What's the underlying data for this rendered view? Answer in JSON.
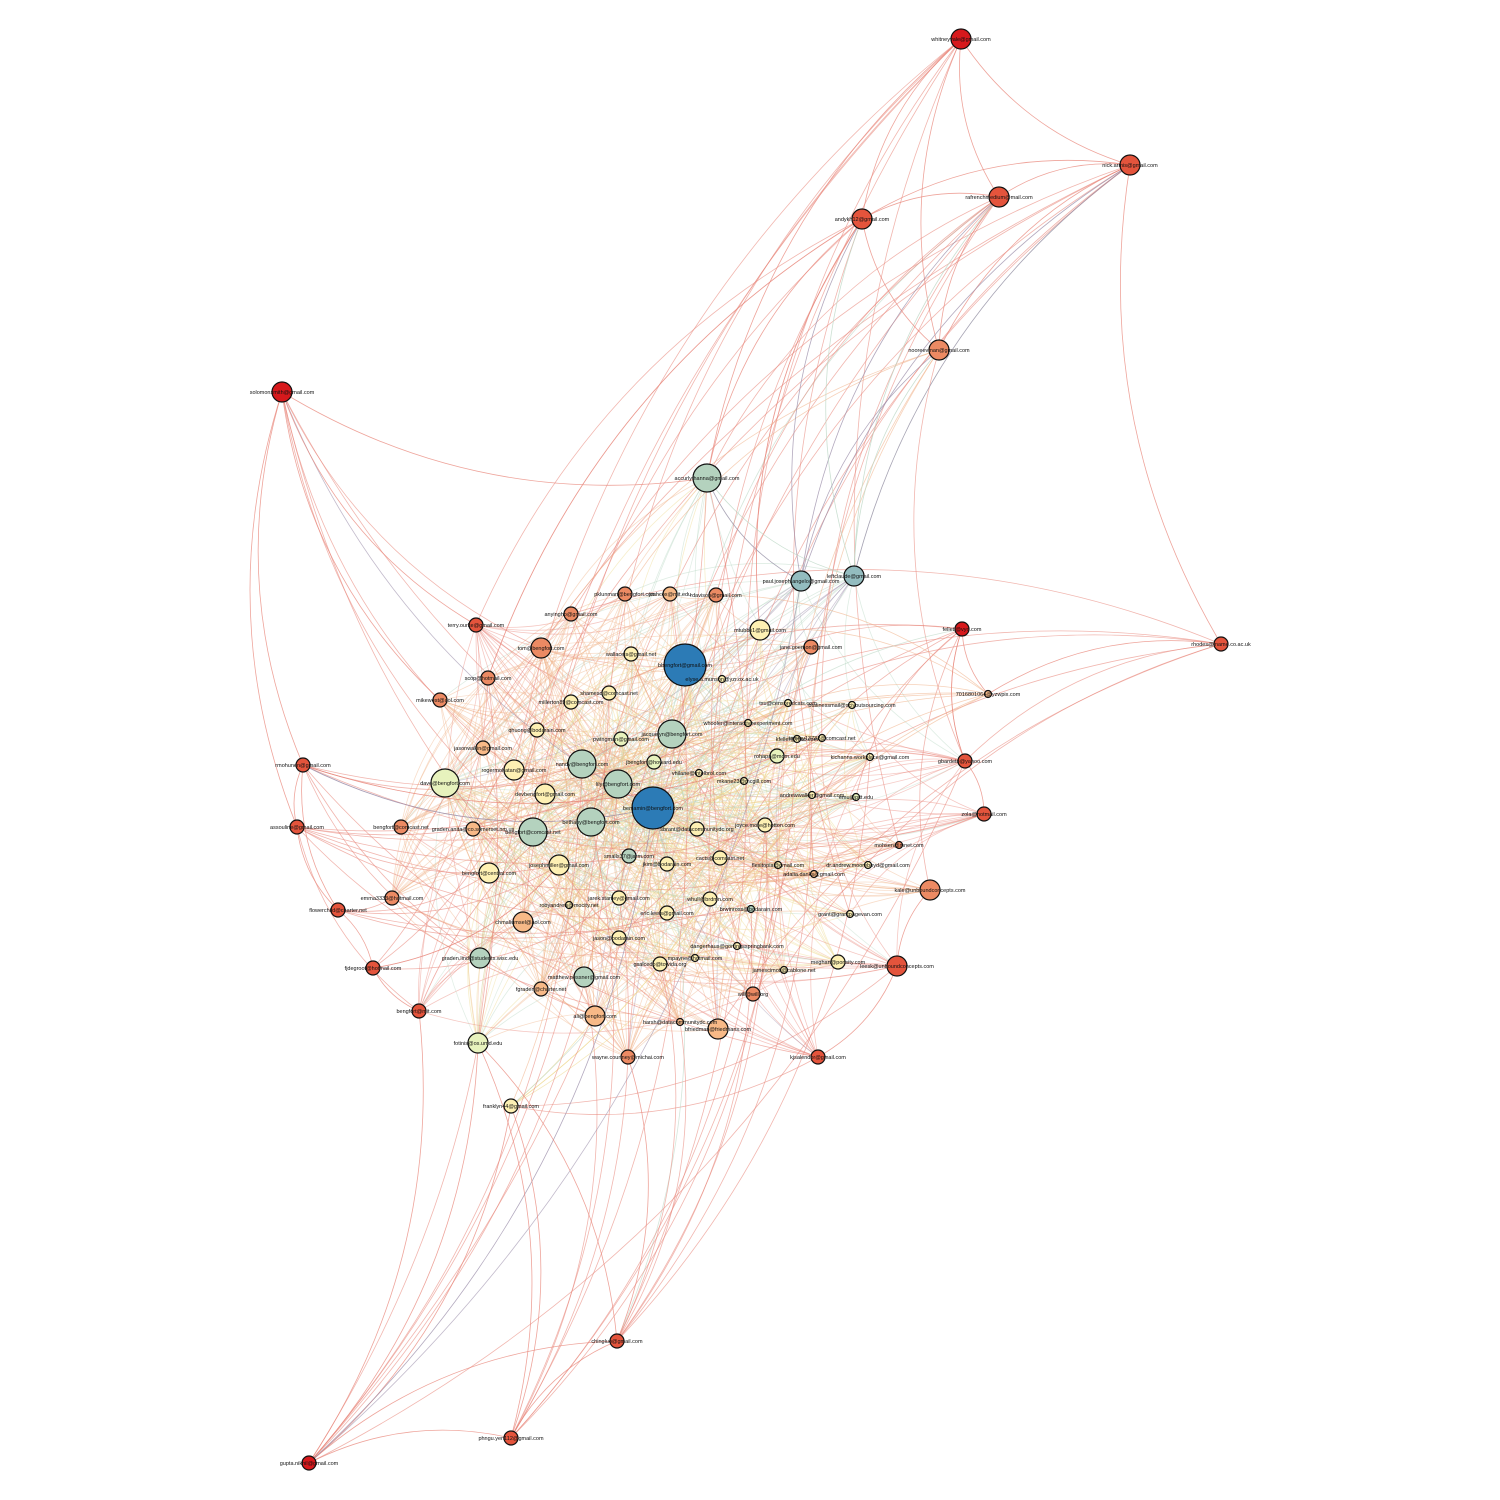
{
  "colors": {
    "red": "#d7191c",
    "red_orange": "#e4543c",
    "salmon": "#ec8a63",
    "peach": "#f7b987",
    "light_yellow": "#fdf0b3",
    "pale_green": "#e7f2bd",
    "sage": "#b4d2be",
    "teal_gray": "#93bcbf",
    "blue": "#2c7bb6",
    "edge_red": "#e8857a",
    "edge_orange": "#f0b38a",
    "edge_yellow": "#eed98f",
    "edge_green": "#b9d6c3",
    "edge_purple": "#9a8ca8"
  },
  "nodes": [
    {
      "id": "whitney",
      "label": "whitneyvale@gmail.com",
      "color": "red",
      "size": "md"
    },
    {
      "id": "nick",
      "label": "nick.armis@gmail.com",
      "color": "red_orange",
      "size": "md"
    },
    {
      "id": "rafrench",
      "label": "rafrenchmedium@mail.com",
      "color": "red_orange",
      "size": "md"
    },
    {
      "id": "andyk",
      "label": "andykh12@gmail.com",
      "color": "red_orange",
      "size": "md"
    },
    {
      "id": "nooree",
      "label": "nooreevman@gmail.com",
      "color": "salmon",
      "size": "md"
    },
    {
      "id": "solomon",
      "label": "solomonsmith@gmail.com",
      "color": "red",
      "size": "md"
    },
    {
      "id": "accurly",
      "label": "accurlythanna@gmail.com",
      "color": "sage",
      "size": "lg"
    },
    {
      "id": "pauljoseph",
      "label": "paul.joseph.angelo@gmail.com",
      "color": "teal_gray",
      "size": "md"
    },
    {
      "id": "leftclaude",
      "label": "leftclaude@gmail.com",
      "color": "teal_gray",
      "size": "md"
    },
    {
      "id": "rhodes",
      "label": "rhodes@iname.co.ac.uk",
      "color": "red_orange",
      "size": "sm"
    },
    {
      "id": "felleti",
      "label": "felleti@vyo.com",
      "color": "red",
      "size": "sm"
    },
    {
      "id": "n701",
      "label": "7016801064@yzwpix.com",
      "color": "peach",
      "size": "xs"
    },
    {
      "id": "terry",
      "label": "terry.ourke@gmail.com",
      "color": "red_orange",
      "size": "sm"
    },
    {
      "id": "anyingho",
      "label": "anyingho@gmail.com",
      "color": "salmon",
      "size": "sm"
    },
    {
      "id": "pklunman",
      "label": "pklunman@bengfort.com",
      "color": "salmon",
      "size": "sm"
    },
    {
      "id": "joshcox",
      "label": "joshcox@mit.edu",
      "color": "peach",
      "size": "sm"
    },
    {
      "id": "rdavison",
      "label": "rdavison@gmail.com",
      "color": "salmon",
      "size": "sm"
    },
    {
      "id": "tom",
      "label": "tom@bengfort.com",
      "color": "salmon",
      "size": "md"
    },
    {
      "id": "mtubbs",
      "label": "mtubbs1@gmail.com",
      "color": "light_yellow",
      "size": "md"
    },
    {
      "id": "jane",
      "label": "jane.goemon@gmail.com",
      "color": "salmon",
      "size": "sm"
    },
    {
      "id": "bbengfort",
      "label": "bbengfort@gmail.com",
      "color": "blue",
      "size": "xl"
    },
    {
      "id": "wallacejs",
      "label": "wallacejs@gmail.net",
      "color": "light_yellow",
      "size": "sm"
    },
    {
      "id": "elyse",
      "label": "elyse.a.munson@yzr.ox.ac.uk",
      "color": "light_yellow",
      "size": "xs"
    },
    {
      "id": "mikewest",
      "label": "mikewest@aol.com",
      "color": "salmon",
      "size": "sm"
    },
    {
      "id": "scop",
      "label": "scop@hotmail.com",
      "color": "salmon",
      "size": "sm"
    },
    {
      "id": "shamesd",
      "label": "shamesd@comcast.net",
      "color": "light_yellow",
      "size": "sm"
    },
    {
      "id": "millerton",
      "label": "millerton89@comcast.com",
      "color": "light_yellow",
      "size": "sm"
    },
    {
      "id": "tsu",
      "label": "tsu@censoredcats.com",
      "color": "light_yellow",
      "size": "xs"
    },
    {
      "id": "businessmail",
      "label": "businessmail@sciyoutsourcing.com",
      "color": "light_yellow",
      "size": "xs"
    },
    {
      "id": "whooler",
      "label": "whooler@interactiveexperiment.com",
      "color": "light_yellow",
      "size": "xs"
    },
    {
      "id": "qhuong",
      "label": "qhuong@bodarain.com",
      "color": "light_yellow",
      "size": "sm"
    },
    {
      "id": "jacquelyn",
      "label": "jacquelyn@bengfort.com",
      "color": "sage",
      "size": "lg"
    },
    {
      "id": "pwingman",
      "label": "pwingman@gmail.com",
      "color": "pale_green",
      "size": "sm"
    },
    {
      "id": "kfeller",
      "label": "kfeller@mac.com",
      "color": "light_yellow",
      "size": "xs"
    },
    {
      "id": "tammy",
      "label": "tammy13732@comcast.net",
      "color": "light_yellow",
      "size": "xs"
    },
    {
      "id": "rohapa",
      "label": "rohapa@mdm.edu",
      "color": "pale_green",
      "size": "sm"
    },
    {
      "id": "kichanns",
      "label": "kichanns.workplace@gmail.com",
      "color": "light_yellow",
      "size": "xs"
    },
    {
      "id": "gbardeto",
      "label": "gbardeto@yahoo.com",
      "color": "red_orange",
      "size": "sm"
    },
    {
      "id": "rmohunen",
      "label": "rmohunen@gmail.com",
      "color": "red_orange",
      "size": "sm"
    },
    {
      "id": "jasonwakin",
      "label": "jasonwakin@gmail.com",
      "color": "peach",
      "size": "sm"
    },
    {
      "id": "nandy",
      "label": "nandy@bengfort.com",
      "color": "sage",
      "size": "lg"
    },
    {
      "id": "jbengfort",
      "label": "jbengfort@howard.edu",
      "color": "pale_green",
      "size": "sm"
    },
    {
      "id": "vhilane",
      "label": "vhilane@intelbrol.com",
      "color": "light_yellow",
      "size": "xs"
    },
    {
      "id": "mkane",
      "label": "mkane23@mcgill.com",
      "color": "light_yellow",
      "size": "xs"
    },
    {
      "id": "dave",
      "label": "dave@bengfort.com",
      "color": "pale_green",
      "size": "lg"
    },
    {
      "id": "rogermohatan",
      "label": "rogermohatan@gmail.com",
      "color": "light_yellow",
      "size": "md"
    },
    {
      "id": "lily",
      "label": "lily@bengfort.com",
      "color": "sage",
      "size": "lg"
    },
    {
      "id": "andrewwalker",
      "label": "andrewwalker@gmail.com",
      "color": "light_yellow",
      "size": "xs"
    },
    {
      "id": "emu",
      "label": "emu@pitt.edu",
      "color": "pale_green",
      "size": "xs"
    },
    {
      "id": "devbengfort",
      "label": "devbengfort@gmail.com",
      "color": "light_yellow",
      "size": "md"
    },
    {
      "id": "benjamin",
      "label": "benjamin@bengfort.com",
      "color": "blue",
      "size": "xl"
    },
    {
      "id": "zola",
      "label": "zola@hotmail.com",
      "color": "red_orange",
      "size": "sm"
    },
    {
      "id": "assouline",
      "label": "assouline@gmail.com",
      "color": "red_orange",
      "size": "sm"
    },
    {
      "id": "bengfortcomcast",
      "label": "bengfort@comcast.net",
      "color": "salmon",
      "size": "sm"
    },
    {
      "id": "gradenanita",
      "label": "graden.anita@co.somerset.nm.us",
      "color": "peach",
      "size": "sm"
    },
    {
      "id": "bethany",
      "label": "bethany@bengfort.com",
      "color": "sage",
      "size": "lg"
    },
    {
      "id": "joyce",
      "label": "joyce.more@hotton.com",
      "color": "light_yellow",
      "size": "sm"
    },
    {
      "id": "bengfortcomcast2",
      "label": "bengfort@comcast.net",
      "color": "sage",
      "size": "lg"
    },
    {
      "id": "sbrant",
      "label": "sbrant@datacommunitydc.org",
      "color": "light_yellow",
      "size": "sm"
    },
    {
      "id": "mohsen",
      "label": "mohsen@mnet.com",
      "color": "salmon",
      "size": "xs"
    },
    {
      "id": "smalls",
      "label": "smalls37@jarm.com",
      "color": "sage",
      "size": "sm"
    },
    {
      "id": "josephmiller",
      "label": "josephmiller@gmail.com",
      "color": "light_yellow",
      "size": "md"
    },
    {
      "id": "jkim",
      "label": "jkim@bodarain.com",
      "color": "light_yellow",
      "size": "sm"
    },
    {
      "id": "cacts",
      "label": "cacts@comcast.net",
      "color": "light_yellow",
      "size": "sm"
    },
    {
      "id": "flexitopia",
      "label": "flexitopia@gmail.com",
      "color": "light_yellow",
      "size": "xs"
    },
    {
      "id": "dorit",
      "label": "dr.andrew.mooreboyd@gmail.com",
      "color": "light_yellow",
      "size": "xs"
    },
    {
      "id": "adalia",
      "label": "adalia.danks@gmail.com",
      "color": "peach",
      "size": "xs"
    },
    {
      "id": "kale",
      "label": "kale@unboundconcepts.com",
      "color": "salmon",
      "size": "md"
    },
    {
      "id": "bengfortcentral",
      "label": "bengfort@central.com",
      "color": "light_yellow",
      "size": "md"
    },
    {
      "id": "emma",
      "label": "emma3333@hotmail.com",
      "color": "salmon",
      "size": "sm"
    },
    {
      "id": "flowerchild",
      "label": "flowerchild@charter.net",
      "color": "red_orange",
      "size": "sm"
    },
    {
      "id": "robyand",
      "label": "robyandrew@mocity.net",
      "color": "light_yellow",
      "size": "xs"
    },
    {
      "id": "jarek",
      "label": "jarek.stanley@gmail.com",
      "color": "light_yellow",
      "size": "sm"
    },
    {
      "id": "whull",
      "label": "whull@brdmn.com",
      "color": "light_yellow",
      "size": "sm"
    },
    {
      "id": "chmaliumsel",
      "label": "chmaliumsel@aol.com",
      "color": "peach",
      "size": "md"
    },
    {
      "id": "ericlewis",
      "label": "eric.lewis@gmail.com",
      "color": "light_yellow",
      "size": "sm"
    },
    {
      "id": "brwinross",
      "label": "brwinross@bodarain.com",
      "color": "sage",
      "size": "xs"
    },
    {
      "id": "grant",
      "label": "grant@grantpagevan.com",
      "color": "light_yellow",
      "size": "xs"
    },
    {
      "id": "jason",
      "label": "jason@bodarain.com",
      "color": "light_yellow",
      "size": "sm"
    },
    {
      "id": "gradenlind",
      "label": "graden.lind@students.wisc.edu",
      "color": "sage",
      "size": "md"
    },
    {
      "id": "danger",
      "label": "dangerhaus@gorringsspringbank.com",
      "color": "light_yellow",
      "size": "xs"
    },
    {
      "id": "fjdegroot",
      "label": "fjdegroot@hotmail.com",
      "color": "red_orange",
      "size": "sm"
    },
    {
      "id": "mpayne",
      "label": "mpayne@hotmail.com",
      "color": "light_yellow",
      "size": "xs"
    },
    {
      "id": "meghan",
      "label": "meghan@ponsity.com",
      "color": "light_yellow",
      "size": "sm"
    },
    {
      "id": "jamescimoti",
      "label": "jamescimoti@cablone.net",
      "color": "light_yellow",
      "size": "xs"
    },
    {
      "id": "gsalcedo",
      "label": "gsalcedo@towida.org",
      "color": "light_yellow",
      "size": "sm"
    },
    {
      "id": "leesk",
      "label": "leesk@unboundconcepts.com",
      "color": "red_orange",
      "size": "md"
    },
    {
      "id": "matthew",
      "label": "matthew.pessner@gmail.com",
      "color": "sage",
      "size": "md"
    },
    {
      "id": "fgraden",
      "label": "fgraden@charter.net",
      "color": "peach",
      "size": "sm"
    },
    {
      "id": "bengfortmit",
      "label": "bengfort@mit.com",
      "color": "red_orange",
      "size": "sm"
    },
    {
      "id": "will",
      "label": "will@will.org",
      "color": "salmon",
      "size": "sm"
    },
    {
      "id": "ali",
      "label": "ali@bengfort.com",
      "color": "peach",
      "size": "md"
    },
    {
      "id": "harsh",
      "label": "harsh@datacommunitydc.com",
      "color": "peach",
      "size": "xs"
    },
    {
      "id": "bfriedman",
      "label": "bfriedman@friedmans.com",
      "color": "peach",
      "size": "md"
    },
    {
      "id": "fotini",
      "label": "fotinis@os.umd.edu",
      "color": "pale_green",
      "size": "md"
    },
    {
      "id": "wayne",
      "label": "wayne.courtney@michai.com",
      "color": "salmon",
      "size": "sm"
    },
    {
      "id": "kjsalendor",
      "label": "kjsalendor@gmail.com",
      "color": "red_orange",
      "size": "sm"
    },
    {
      "id": "franklyn",
      "label": "franklyn44@gmail.com",
      "color": "light_yellow",
      "size": "sm"
    },
    {
      "id": "chingluo",
      "label": "chingluo@gmail.com",
      "color": "red_orange",
      "size": "sm"
    },
    {
      "id": "phngu",
      "label": "phngu.yen112@gmail.com",
      "color": "red_orange",
      "size": "sm"
    },
    {
      "id": "gupta",
      "label": "gupta.nikhil@gmail.com",
      "color": "red",
      "size": "sm"
    }
  ]
}
